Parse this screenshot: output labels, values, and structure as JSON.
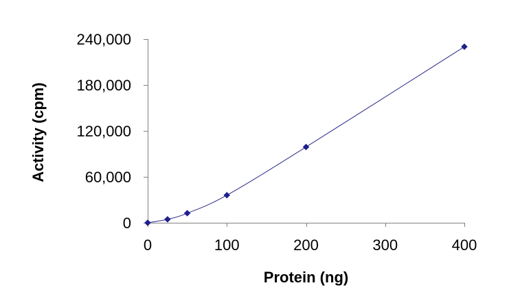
{
  "chart_data": {
    "type": "scatter",
    "title": "",
    "xlabel": "Protein (ng)",
    "ylabel": "Activity (cpm)",
    "xlim": [
      0,
      400
    ],
    "ylim": [
      0,
      240000
    ],
    "xticks": [
      0,
      100,
      200,
      300,
      400
    ],
    "yticks": [
      0,
      60000,
      120000,
      180000,
      240000
    ],
    "xtick_labels": [
      "0",
      "100",
      "200",
      "300",
      "400"
    ],
    "ytick_labels": [
      "0",
      "60,000",
      "120,000",
      "180,000",
      "240,000"
    ],
    "grid": false,
    "legend": "none",
    "series": [
      {
        "x": [
          0,
          25,
          50,
          100,
          200,
          400
        ],
        "y": [
          0,
          4500,
          12500,
          36000,
          99000,
          230000
        ],
        "marker": "diamond",
        "line": "smooth",
        "color": "#1f1f8f",
        "line_color": "#2b2b8c"
      }
    ]
  }
}
